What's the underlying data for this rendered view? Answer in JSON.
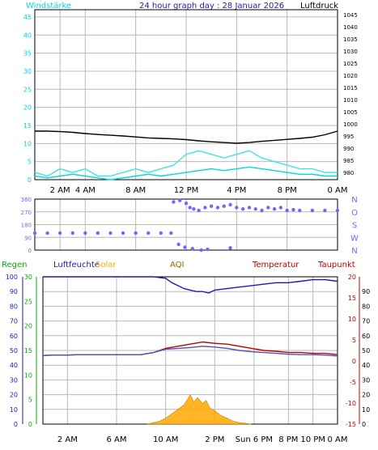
{
  "colors": {
    "wind": "#00d8e0",
    "gust": "#3fe3e6",
    "pressure": "#000000",
    "direction": "#6a6aff",
    "humidity": "#1a1ab8",
    "regen": "#00b000",
    "temperature": "#c00000",
    "dewpoint": "#5050c0",
    "solar": "#ffa800",
    "aqi": "#8a6a00",
    "frame": "#000000",
    "grid": "#b8b8b8"
  },
  "chart_data": [
    {
      "type": "line",
      "title": "24 hour graph day : 28 Januar 2026",
      "left_label": "Windstärke",
      "right_label": "Luftdruck",
      "x_ticks": [
        "2 AM",
        "4 AM",
        "8 AM",
        "12 PM",
        "4 PM",
        "8 PM",
        "0 AM"
      ],
      "x_tick_hours": [
        2,
        4,
        8,
        12,
        16,
        20,
        24
      ],
      "xlim": [
        0,
        24
      ],
      "y_left_ticks": [
        0,
        5,
        10,
        15,
        20,
        25,
        30,
        35,
        40,
        45
      ],
      "ylim_left": [
        0,
        47
      ],
      "y_right_ticks": [
        980,
        985,
        990,
        995,
        1000,
        1005,
        1010,
        1015,
        1020,
        1025,
        1030,
        1035,
        1040,
        1045
      ],
      "ylim_right": [
        977,
        1047
      ],
      "grid": true,
      "series": [
        {
          "name": "Luftdruck",
          "axis": "right",
          "x": [
            0,
            1,
            2,
            3,
            4,
            5,
            6,
            7,
            8,
            9,
            10,
            11,
            12,
            13,
            14,
            15,
            16,
            17,
            18,
            19,
            20,
            21,
            22,
            23,
            24
          ],
          "values": [
            997,
            997,
            996.8,
            996.5,
            996,
            995.6,
            995.3,
            995,
            994.6,
            994.2,
            994,
            993.8,
            993.5,
            993,
            992.6,
            992.3,
            992,
            992.3,
            992.8,
            993.2,
            993.6,
            994,
            994.5,
            995.5,
            997
          ]
        },
        {
          "name": "Windstärke",
          "axis": "left",
          "x": [
            0,
            1,
            2,
            3,
            4,
            5,
            6,
            7,
            8,
            9,
            10,
            11,
            12,
            13,
            14,
            15,
            16,
            17,
            18,
            19,
            20,
            21,
            22,
            23,
            24
          ],
          "values": [
            1,
            0.5,
            1,
            1.5,
            1,
            0.5,
            0,
            0.5,
            1,
            1.5,
            1,
            1.5,
            2,
            2.5,
            3,
            2.5,
            3,
            3.5,
            3,
            2.5,
            2,
            1.5,
            1.5,
            1,
            1
          ]
        },
        {
          "name": "Böen",
          "axis": "left",
          "x": [
            0,
            1,
            2,
            3,
            4,
            5,
            6,
            7,
            8,
            9,
            10,
            11,
            12,
            13,
            14,
            15,
            16,
            17,
            18,
            19,
            20,
            21,
            22,
            23,
            24
          ],
          "values": [
            2,
            1,
            3,
            2,
            3,
            1,
            1,
            2,
            3,
            2,
            3,
            4,
            7,
            8,
            7,
            6,
            7,
            8,
            6,
            5,
            4,
            3,
            3,
            2,
            2
          ]
        }
      ]
    },
    {
      "type": "scatter",
      "title": "",
      "y_ticks": [
        0,
        90,
        180,
        270,
        360
      ],
      "ylim": [
        0,
        360
      ],
      "compass_labels": [
        "N",
        "W",
        "S",
        "O",
        "N"
      ],
      "grid": true,
      "series": [
        {
          "name": "Windrichtung",
          "axis": "left",
          "x": [
            0,
            1,
            2,
            3,
            4,
            5,
            6,
            7,
            8,
            9,
            10,
            10.8,
            11,
            11.5,
            12,
            12.3,
            12.6,
            13,
            13.5,
            14,
            14.5,
            15,
            15.5,
            16,
            16.5,
            17,
            17.5,
            18,
            18.5,
            19,
            19.5,
            20,
            20.5,
            21,
            22,
            23,
            24
          ],
          "values": [
            120,
            120,
            120,
            120,
            120,
            120,
            120,
            120,
            120,
            120,
            120,
            120,
            340,
            350,
            330,
            300,
            290,
            280,
            300,
            310,
            300,
            310,
            320,
            300,
            290,
            300,
            290,
            280,
            300,
            290,
            300,
            280,
            285,
            280,
            280,
            280,
            280
          ]
        },
        {
          "name": "Windrichtung (N)",
          "axis": "left",
          "x": [
            11.4,
            11.9,
            12.5,
            13.2,
            13.7,
            15.5
          ],
          "values": [
            40,
            20,
            10,
            0,
            5,
            15
          ]
        }
      ]
    },
    {
      "type": "line",
      "title": "",
      "legend": [
        "Regen",
        "Luftfeuchte",
        "Solar",
        "AQI",
        "Temperatur",
        "Taupunkt"
      ],
      "x_ticks": [
        "2 AM",
        "6 AM",
        "10 AM",
        "2 PM",
        "Sun 6 PM",
        "8 PM",
        "10 PM",
        "0 AM"
      ],
      "x_tick_hours": [
        2,
        6,
        10,
        14,
        17.2,
        20,
        22,
        24
      ],
      "xlim": [
        0,
        24
      ],
      "y_humidity_ticks": [
        0,
        10,
        20,
        30,
        40,
        50,
        60,
        70,
        80,
        90,
        100
      ],
      "ylim_humidity": [
        0,
        100
      ],
      "y_regen_ticks": [
        0,
        5,
        10,
        15,
        20,
        25,
        30
      ],
      "ylim_regen": [
        0,
        30
      ],
      "y_temp_ticks": [
        -15,
        -10,
        -5,
        0,
        5,
        10,
        15,
        20
      ],
      "ylim_temp": [
        -15,
        20
      ],
      "y_pct_ticks": [
        0,
        10,
        20,
        30,
        40,
        50,
        60,
        70,
        80,
        90
      ],
      "grid": true,
      "series": [
        {
          "name": "Luftfeuchte",
          "axis": "humidity",
          "x": [
            0,
            1,
            2,
            3,
            4,
            5,
            6,
            7,
            8,
            9,
            10,
            10.5,
            11,
            11.5,
            12,
            12.5,
            13,
            13.5,
            14,
            15,
            16,
            17,
            18,
            19,
            20,
            21,
            22,
            23,
            24
          ],
          "values": [
            100,
            100,
            100,
            100,
            100,
            100,
            100,
            100,
            100,
            100,
            99,
            96,
            94,
            92,
            91,
            90,
            90,
            89,
            91,
            92,
            93,
            94,
            95,
            96,
            96,
            97,
            98,
            98,
            97
          ]
        },
        {
          "name": "Temperatur",
          "axis": "temp",
          "x": [
            0,
            1,
            2,
            3,
            4,
            5,
            6,
            7,
            8,
            9,
            10,
            11,
            12,
            13,
            14,
            15,
            16,
            17,
            18,
            19,
            20,
            21,
            22,
            23,
            24
          ],
          "values": [
            1.3,
            1.4,
            1.4,
            1.5,
            1.5,
            1.5,
            1.5,
            1.5,
            1.5,
            2,
            3,
            3.5,
            4,
            4.5,
            4.2,
            4,
            3.5,
            3,
            2.5,
            2.3,
            2,
            2,
            1.8,
            1.8,
            1.5
          ]
        },
        {
          "name": "Taupunkt",
          "axis": "temp",
          "x": [
            0,
            1,
            2,
            3,
            4,
            5,
            6,
            7,
            8,
            9,
            10,
            11,
            12,
            13,
            14,
            15,
            16,
            17,
            18,
            19,
            20,
            21,
            22,
            23,
            24
          ],
          "values": [
            1.3,
            1.4,
            1.4,
            1.5,
            1.5,
            1.5,
            1.5,
            1.5,
            1.5,
            2,
            2.8,
            3,
            3.2,
            3.5,
            3.3,
            3,
            2.5,
            2.2,
            2,
            1.8,
            1.6,
            1.5,
            1.5,
            1.4,
            1.2
          ]
        },
        {
          "name": "Solar",
          "axis": "pct",
          "type": "area",
          "x": [
            8.5,
            9,
            9.5,
            10,
            10.5,
            11,
            11.5,
            12,
            12.3,
            12.6,
            13,
            13.3,
            13.6,
            14,
            14.5,
            15,
            15.5,
            16,
            16.5,
            17
          ],
          "values": [
            0,
            1,
            2,
            4,
            7,
            10,
            13,
            20,
            15,
            18,
            14,
            16,
            11,
            9,
            6,
            4,
            2,
            1,
            0.5,
            0
          ]
        }
      ]
    }
  ]
}
